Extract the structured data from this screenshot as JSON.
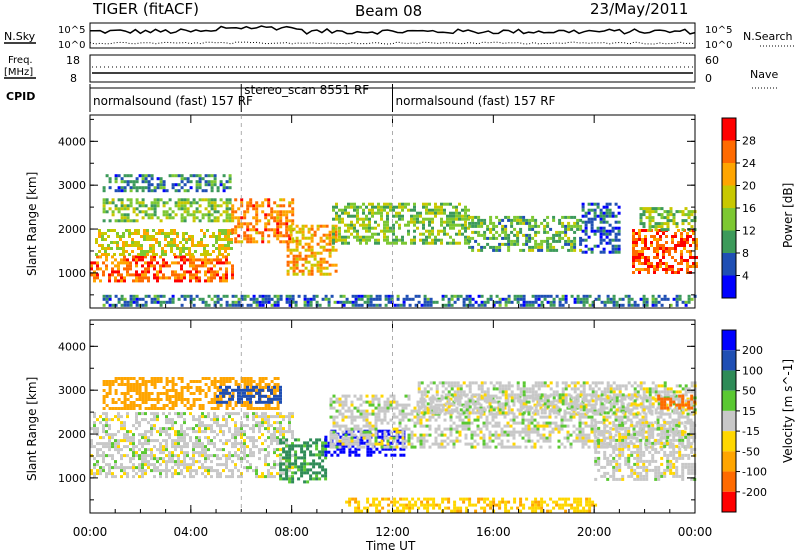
{
  "header": {
    "radar": "TIGER (fitACF)",
    "beam": "Beam 08",
    "date": "23/May/2011"
  },
  "top_panels": {
    "nsky_label": "N.Sky",
    "nsearch_label": "N.Search",
    "noise_ticks_left": [
      "10^5",
      "10^0"
    ],
    "noise_ticks_right": [
      "10^5",
      "10^0"
    ],
    "freq_label_line1": "Freq.",
    "freq_label_line2": "[MHz]",
    "freq_ticks": [
      "18",
      "8"
    ],
    "nave_label": "Nave",
    "nave_ticks": [
      "60",
      "0"
    ],
    "cpid_label": "CPID",
    "cpid_segments": [
      {
        "label": "normalsound (fast) 157 RF",
        "start_hour": 0,
        "end_hour": 6
      },
      {
        "label": "stereo_scan 8551 RF",
        "start_hour": 6,
        "end_hour": 12
      },
      {
        "label": "normalsound (fast) 157 RF",
        "start_hour": 12,
        "end_hour": 24
      }
    ]
  },
  "chart_data": [
    {
      "type": "heatmap",
      "name": "power",
      "ylabel": "Slant Range [km]",
      "yticks": [
        "4000",
        "3000",
        "2000",
        "1000"
      ],
      "ylim": [
        200,
        4600
      ],
      "xlim": [
        0,
        24
      ],
      "colorbar_label": "Power [dB]",
      "colorbar_ticks": [
        "28",
        "24",
        "20",
        "16",
        "12",
        "8",
        "4"
      ],
      "colorbar_colors": [
        "#ff0000",
        "#ff6a00",
        "#ffa500",
        "#c8c800",
        "#7dc832",
        "#3c9a5a",
        "#1f4fb4",
        "#0000ff"
      ],
      "regions": [
        {
          "x": [
            0.0,
            5.6
          ],
          "y": [
            850,
            1400
          ],
          "level": 26
        },
        {
          "x": [
            0.2,
            5.6
          ],
          "y": [
            1400,
            2000
          ],
          "level": 18
        },
        {
          "x": [
            0.5,
            5.5
          ],
          "y": [
            2200,
            2700
          ],
          "level": 14
        },
        {
          "x": [
            0.5,
            5.5
          ],
          "y": [
            2850,
            3250
          ],
          "level": 8
        },
        {
          "x": [
            5.6,
            8.0
          ],
          "y": [
            1700,
            2700
          ],
          "level": 24
        },
        {
          "x": [
            7.8,
            9.8
          ],
          "y": [
            1000,
            2100
          ],
          "level": 22
        },
        {
          "x": [
            9.6,
            15.0
          ],
          "y": [
            1700,
            2600
          ],
          "level": 14
        },
        {
          "x": [
            15.0,
            19.5
          ],
          "y": [
            1500,
            2300
          ],
          "level": 12
        },
        {
          "x": [
            19.5,
            21.0
          ],
          "y": [
            1500,
            2600
          ],
          "level": 6
        },
        {
          "x": [
            21.5,
            24.0
          ],
          "y": [
            1000,
            2000
          ],
          "level": 27
        },
        {
          "x": [
            21.8,
            24.0
          ],
          "y": [
            2000,
            2500
          ],
          "level": 14
        },
        {
          "x": [
            0.5,
            24.0
          ],
          "y": [
            250,
            500
          ],
          "level": 8
        }
      ]
    },
    {
      "type": "heatmap",
      "name": "velocity",
      "ylabel": "Slant Range [km]",
      "xlabel": "Time UT",
      "xticks": [
        "00:00",
        "04:00",
        "08:00",
        "12:00",
        "16:00",
        "20:00",
        "00:00"
      ],
      "yticks": [
        "4000",
        "3000",
        "2000",
        "1000"
      ],
      "ylim": [
        200,
        4600
      ],
      "xlim": [
        0,
        24
      ],
      "colorbar_label": "Velocity [m s^-1]",
      "colorbar_ticks": [
        "200",
        "100",
        "50",
        "15",
        "-15",
        "-50",
        "-100",
        "-200"
      ],
      "colorbar_colors": [
        "#0000ff",
        "#1f4fb4",
        "#2e8b57",
        "#5ac832",
        "#c8c8c8",
        "#ffd700",
        "#ffa500",
        "#ff6a00",
        "#ff0000"
      ],
      "regions": [
        {
          "x": [
            0.0,
            8.0
          ],
          "y": [
            1000,
            2500
          ],
          "level": 0
        },
        {
          "x": [
            0.5,
            7.5
          ],
          "y": [
            2600,
            3300
          ],
          "level": -80
        },
        {
          "x": [
            5.0,
            7.5
          ],
          "y": [
            2700,
            3100
          ],
          "level": 150
        },
        {
          "x": [
            7.5,
            9.3
          ],
          "y": [
            900,
            1900
          ],
          "level": 60
        },
        {
          "x": [
            9.3,
            12.5
          ],
          "y": [
            1500,
            2100
          ],
          "level": 220
        },
        {
          "x": [
            9.5,
            24.0
          ],
          "y": [
            1700,
            2900
          ],
          "level": 0
        },
        {
          "x": [
            13.0,
            24.0
          ],
          "y": [
            2500,
            3200
          ],
          "level": 0
        },
        {
          "x": [
            20.0,
            24.0
          ],
          "y": [
            1000,
            2300
          ],
          "level": 0
        },
        {
          "x": [
            22.5,
            24.0
          ],
          "y": [
            2600,
            2900
          ],
          "level": -150
        },
        {
          "x": [
            10.0,
            20.0
          ],
          "y": [
            250,
            550
          ],
          "level": -40
        }
      ]
    }
  ]
}
